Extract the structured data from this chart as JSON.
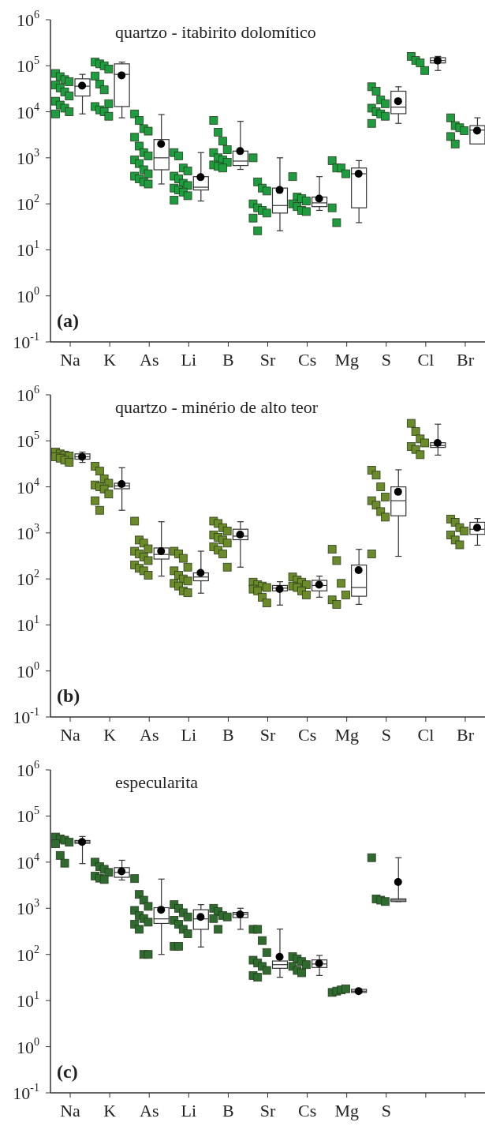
{
  "chart_data": [
    {
      "type": "box",
      "title": "quartzo - itabirito dolomítico",
      "annotations": [
        "(a)"
      ],
      "categories": [
        "Na",
        "K",
        "As",
        "Li",
        "B",
        "Sr",
        "Cs",
        "Mg",
        "S",
        "Cl",
        "Br"
      ],
      "log": "y",
      "ylim": [
        0.1,
        1000000
      ],
      "yticks": [
        {
          "value": 0.1,
          "label": "10$^{-1}$"
        },
        {
          "value": 1,
          "label": "10$^{0}$"
        },
        {
          "value": 10,
          "label": "10$^{1}$"
        },
        {
          "value": 100,
          "label": "10$^{2}$"
        },
        {
          "value": 1000,
          "label": "10$^{3}$"
        },
        {
          "value": 10000,
          "label": "10$^{4}$"
        },
        {
          "value": 100000,
          "label": "10$^{5}$"
        },
        {
          "value": 1000000,
          "label": "10$^{6}$"
        }
      ],
      "marker": "square",
      "boxes": [
        {
          "low": 9000,
          "q1": 22000,
          "median": 36000,
          "q3": 52000,
          "high": 65000,
          "mean": 37000
        },
        {
          "low": 7400,
          "q1": 13000,
          "median": 65000,
          "q3": 110000,
          "high": 120000,
          "mean": 62000
        },
        {
          "low": 270,
          "q1": 550,
          "median": 1000,
          "q3": 2500,
          "high": 8700,
          "mean": 2000
        },
        {
          "low": 115,
          "q1": 200,
          "median": 230,
          "q3": 390,
          "high": 1300,
          "mean": 380
        },
        {
          "low": 560,
          "q1": 680,
          "median": 850,
          "q3": 1400,
          "high": 6200,
          "mean": 1400
        },
        {
          "low": 26,
          "q1": 63,
          "median": 92,
          "q3": 220,
          "high": 1000,
          "mean": 200
        },
        {
          "low": 72,
          "q1": 87,
          "median": 105,
          "q3": 140,
          "high": 390,
          "mean": 130
        },
        {
          "low": 39,
          "q1": 82,
          "median": 450,
          "q3": 600,
          "high": 870,
          "mean": 450
        },
        {
          "low": 5600,
          "q1": 9100,
          "median": 12600,
          "q3": 28000,
          "high": 35000,
          "mean": 17000
        },
        {
          "low": 79000,
          "q1": 115000,
          "median": 130000,
          "q3": 150000,
          "high": 160000,
          "mean": 130000
        },
        {
          "low": 2000,
          "q1": 2000,
          "median": 4000,
          "q3": 5000,
          "high": 7400,
          "mean": 3900
        }
      ],
      "series": [
        {
          "type": "scatter",
          "color": "#1f9c3f",
          "x": [
            "Na",
            "Na",
            "Na",
            "Na",
            "Na",
            "Na",
            "Na",
            "Na",
            "Na",
            "Na",
            "Na",
            "Na",
            "Na",
            "K",
            "K",
            "K",
            "K",
            "K",
            "K",
            "K",
            "K",
            "K",
            "K",
            "K",
            "K",
            "As",
            "As",
            "As",
            "As",
            "As",
            "As",
            "As",
            "As",
            "As",
            "As",
            "As",
            "As",
            "As",
            "As",
            "As",
            "As",
            "Li",
            "Li",
            "Li",
            "Li",
            "Li",
            "Li",
            "Li",
            "Li",
            "Li",
            "Li",
            "Li",
            "Li",
            "Li",
            "B",
            "B",
            "B",
            "B",
            "B",
            "B",
            "B",
            "B",
            "B",
            "B",
            "B",
            "Sr",
            "Sr",
            "Sr",
            "Sr",
            "Sr",
            "Sr",
            "Sr",
            "Sr",
            "Sr",
            "Sr",
            "Cs",
            "Cs",
            "Cs",
            "Cs",
            "Cs",
            "Cs",
            "Cs",
            "Cs",
            "Mg",
            "Mg",
            "Mg",
            "Mg",
            "Mg",
            "Mg",
            "S",
            "S",
            "S",
            "S",
            "S",
            "S",
            "S",
            "S",
            "S",
            "Cl",
            "Cl",
            "Cl",
            "Cl",
            "Br",
            "Br",
            "Br",
            "Br",
            "Br",
            "Br"
          ],
          "values": [
            68000,
            58000,
            50000,
            45000,
            38000,
            33000,
            27000,
            22000,
            17000,
            14000,
            12000,
            10000,
            9000,
            120000,
            110000,
            100000,
            85000,
            60000,
            40000,
            30000,
            15000,
            13000,
            11000,
            10000,
            8000,
            9000,
            6500,
            4300,
            3800,
            2800,
            1800,
            1300,
            1100,
            900,
            750,
            550,
            450,
            400,
            350,
            300,
            270,
            1300,
            1100,
            600,
            520,
            400,
            350,
            280,
            250,
            220,
            200,
            180,
            150,
            120,
            6500,
            3600,
            2300,
            1500,
            1300,
            1000,
            900,
            800,
            700,
            650,
            600,
            1000,
            300,
            220,
            190,
            100,
            82,
            72,
            63,
            49,
            26,
            390,
            140,
            130,
            115,
            100,
            87,
            72,
            68,
            870,
            600,
            600,
            450,
            82,
            39,
            35000,
            28000,
            18000,
            15000,
            12000,
            10000,
            9000,
            8000,
            5600,
            160000,
            130000,
            115000,
            79000,
            7400,
            5000,
            4500,
            3900,
            2900,
            2000
          ]
        }
      ]
    },
    {
      "type": "box",
      "title": "quartzo - minério de alto teor",
      "annotations": [
        "(b)"
      ],
      "categories": [
        "Na",
        "K",
        "As",
        "Li",
        "B",
        "Sr",
        "Cs",
        "Mg",
        "S",
        "Cl",
        "Br"
      ],
      "log": "y",
      "ylim": [
        0.1,
        1000000
      ],
      "yticks": [
        {
          "value": 0.1,
          "label": "10$^{-1}$"
        },
        {
          "value": 1,
          "label": "10$^{0}$"
        },
        {
          "value": 10,
          "label": "10$^{1}$"
        },
        {
          "value": 100,
          "label": "10$^{2}$"
        },
        {
          "value": 1000,
          "label": "10$^{3}$"
        },
        {
          "value": 10000,
          "label": "10$^{4}$"
        },
        {
          "value": 100000,
          "label": "10$^{5}$"
        },
        {
          "value": 1000000,
          "label": "10$^{6}$"
        }
      ],
      "marker": "square",
      "boxes": [
        {
          "low": 34000,
          "q1": 40000,
          "median": 45000,
          "q3": 52000,
          "high": 57000,
          "mean": 45000
        },
        {
          "low": 3100,
          "q1": 9100,
          "median": 10500,
          "q3": 12000,
          "high": 26000,
          "mean": 11500
        },
        {
          "low": 115,
          "q1": 270,
          "median": 340,
          "q3": 470,
          "high": 1750,
          "mean": 400
        },
        {
          "low": 49,
          "q1": 91,
          "median": 110,
          "q3": 135,
          "high": 400,
          "mean": 135
        },
        {
          "low": 180,
          "q1": 710,
          "median": 850,
          "q3": 1200,
          "high": 1750,
          "mean": 920
        },
        {
          "low": 27,
          "q1": 55,
          "median": 63,
          "q3": 72,
          "high": 87,
          "mean": 60
        },
        {
          "low": 40,
          "q1": 55,
          "median": 72,
          "q3": 93,
          "high": 115,
          "mean": 75
        },
        {
          "low": 28,
          "q1": 42,
          "median": 65,
          "q3": 200,
          "high": 440,
          "mean": 155
        },
        {
          "low": 310,
          "q1": 2350,
          "median": 5000,
          "q3": 10000,
          "high": 23500,
          "mean": 7800
        },
        {
          "low": 49000,
          "q1": 72000,
          "median": 79000,
          "q3": 91000,
          "high": 230000,
          "mean": 90000
        },
        {
          "low": 540,
          "q1": 930,
          "median": 1200,
          "q3": 1700,
          "high": 2050,
          "mean": 1300
        }
      ],
      "series": [
        {
          "type": "scatter",
          "color": "#6b8a2a",
          "x": [
            "Na",
            "Na",
            "Na",
            "Na",
            "Na",
            "Na",
            "Na",
            "Na",
            "K",
            "K",
            "K",
            "K",
            "K",
            "K",
            "K",
            "K",
            "K",
            "K",
            "As",
            "As",
            "As",
            "As",
            "As",
            "As",
            "As",
            "As",
            "As",
            "As",
            "As",
            "As",
            "Li",
            "Li",
            "Li",
            "Li",
            "Li",
            "Li",
            "Li",
            "Li",
            "Li",
            "Li",
            "Li",
            "Li",
            "B",
            "B",
            "B",
            "B",
            "B",
            "B",
            "B",
            "B",
            "B",
            "B",
            "B",
            "B",
            "Sr",
            "Sr",
            "Sr",
            "Sr",
            "Sr",
            "Sr",
            "Sr",
            "Sr",
            "Cs",
            "Cs",
            "Cs",
            "Cs",
            "Cs",
            "Cs",
            "Cs",
            "Cs",
            "Mg",
            "Mg",
            "Mg",
            "Mg",
            "Mg",
            "Mg",
            "S",
            "S",
            "S",
            "S",
            "S",
            "S",
            "S",
            "S",
            "S",
            "Cl",
            "Cl",
            "Cl",
            "Cl",
            "Cl",
            "Cl",
            "Cl",
            "Br",
            "Br",
            "Br",
            "Br",
            "Br",
            "Br",
            "Br"
          ],
          "values": [
            57000,
            52000,
            49000,
            47000,
            45000,
            42000,
            38000,
            34000,
            28000,
            22000,
            15000,
            12000,
            11000,
            10000,
            9000,
            7000,
            5000,
            3100,
            1800,
            700,
            600,
            450,
            400,
            350,
            300,
            250,
            200,
            170,
            150,
            120,
            400,
            350,
            280,
            180,
            150,
            120,
            100,
            90,
            80,
            70,
            55,
            50,
            1800,
            1600,
            1300,
            1100,
            900,
            800,
            700,
            600,
            500,
            420,
            350,
            180,
            85,
            75,
            70,
            65,
            60,
            55,
            40,
            30,
            110,
            95,
            85,
            75,
            70,
            65,
            55,
            45,
            440,
            250,
            80,
            45,
            35,
            28,
            23000,
            18000,
            10000,
            6000,
            5000,
            4000,
            2900,
            2200,
            350,
            240000,
            160000,
            110000,
            90000,
            75000,
            65000,
            50000,
            2000,
            1700,
            1300,
            1100,
            900,
            700,
            550
          ]
        }
      ]
    },
    {
      "type": "box",
      "title": "especularita",
      "annotations": [
        "(c)"
      ],
      "categories": [
        "Na",
        "K",
        "As",
        "Li",
        "B",
        "Sr",
        "Cs",
        "Mg",
        "S",
        null,
        null
      ],
      "log": "y",
      "ylim": [
        0.1,
        1000000
      ],
      "yticks": [
        {
          "value": 0.1,
          "label": "10$^{-1}$"
        },
        {
          "value": 1,
          "label": "10$^{0}$"
        },
        {
          "value": 10,
          "label": "10$^{1}$"
        },
        {
          "value": 100,
          "label": "10$^{2}$"
        },
        {
          "value": 1000,
          "label": "10$^{3}$"
        },
        {
          "value": 10000,
          "label": "10$^{4}$"
        },
        {
          "value": 100000,
          "label": "10$^{5}$"
        },
        {
          "value": 1000000,
          "label": "10$^{6}$"
        }
      ],
      "marker": "square",
      "boxes": [
        {
          "low": 9300,
          "q1": 25500,
          "median": 27500,
          "q3": 29500,
          "high": 36000,
          "mean": 27500
        },
        {
          "low": 4100,
          "q1": 4700,
          "median": 6000,
          "q3": 7600,
          "high": 11000,
          "mean": 6300
        },
        {
          "low": 100,
          "q1": 470,
          "median": 590,
          "q3": 1030,
          "high": 4300,
          "mean": 930
        },
        {
          "low": 145,
          "q1": 350,
          "median": 590,
          "q3": 930,
          "high": 1200,
          "mean": 650
        },
        {
          "low": 350,
          "q1": 630,
          "median": 740,
          "q3": 810,
          "high": 1000,
          "mean": 740
        },
        {
          "low": 32,
          "q1": 50,
          "median": 60,
          "q3": 72,
          "high": 355,
          "mean": 89
        },
        {
          "low": 35,
          "q1": 52,
          "median": 62,
          "q3": 76,
          "high": 95,
          "mean": 64
        },
        {
          "low": 15,
          "q1": 15,
          "median": 16,
          "q3": 17.5,
          "high": 18,
          "mean": 16
        },
        {
          "low": 1400,
          "q1": 1400,
          "median": 1500,
          "q3": 1600,
          "high": 12500,
          "mean": 3700
        },
        null,
        null
      ],
      "series": [
        {
          "type": "scatter",
          "color": "#2f6a2f",
          "x": [
            "Na",
            "Na",
            "Na",
            "Na",
            "Na",
            "Na",
            "Na",
            "K",
            "K",
            "K",
            "K",
            "K",
            "K",
            "K",
            "As",
            "As",
            "As",
            "As",
            "As",
            "As",
            "As",
            "As",
            "As",
            "As",
            "As",
            "As",
            "Li",
            "Li",
            "Li",
            "Li",
            "Li",
            "Li",
            "Li",
            "Li",
            "Li",
            "Li",
            "B",
            "B",
            "B",
            "B",
            "B",
            "B",
            "Sr",
            "Sr",
            "Sr",
            "Sr",
            "Sr",
            "Sr",
            "Sr",
            "Sr",
            "Sr",
            "Sr",
            "Cs",
            "Cs",
            "Cs",
            "Cs",
            "Cs",
            "Cs",
            "Cs",
            "Mg",
            "Mg",
            "Mg",
            "Mg",
            "S",
            "S",
            "S",
            "S"
          ],
          "values": [
            35000,
            32000,
            30000,
            27000,
            25000,
            14000,
            9500,
            10000,
            8000,
            7000,
            6000,
            5000,
            4500,
            4200,
            4400,
            2000,
            1500,
            1100,
            900,
            700,
            600,
            500,
            450,
            350,
            100,
            100,
            1200,
            1000,
            800,
            650,
            550,
            450,
            350,
            280,
            150,
            150,
            1000,
            850,
            700,
            650,
            600,
            350,
            350,
            350,
            200,
            110,
            75,
            65,
            55,
            45,
            35,
            32,
            90,
            80,
            70,
            60,
            55,
            45,
            40,
            15,
            16,
            17,
            18,
            12500,
            1600,
            1500,
            1400
          ]
        }
      ]
    }
  ]
}
